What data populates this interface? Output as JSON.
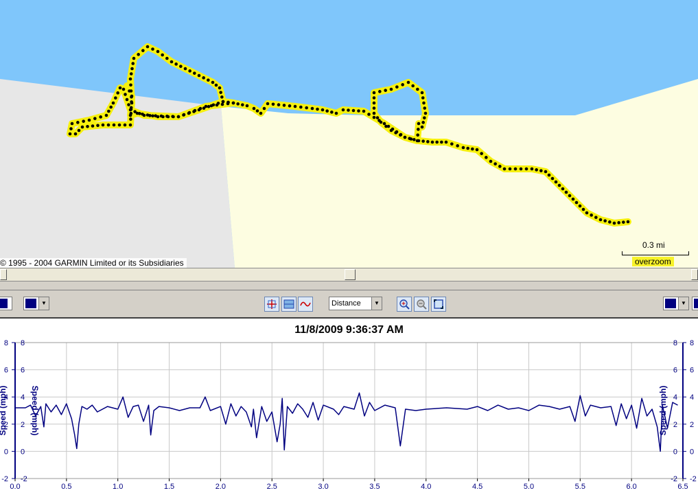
{
  "map": {
    "copyright": "© 1995 - 2004 GARMIN Limited or its Subsidiaries",
    "scale_label": "0.3 mi",
    "overzoom_label": "overzoom",
    "colors": {
      "water": "#7fc6fb",
      "land_gray": "#e7e7e7",
      "land_cream": "#fdfde1",
      "track": "#f6f00f",
      "trackpoint": "#000000"
    }
  },
  "toolbar": {
    "axis_combo_left": "Distance",
    "buttons": [
      "crosshair-icon",
      "graph-panes-icon",
      "profile-graph-icon",
      "zoom-in-icon",
      "zoom-out-icon",
      "zoom-fit-icon"
    ],
    "series_color": "#000080"
  },
  "chart_data": {
    "type": "line",
    "title": "11/8/2009 9:36:37 AM",
    "xlabel": "",
    "ylabel": "Speed (mph)",
    "xlim": [
      0.0,
      6.5
    ],
    "ylim": [
      -2,
      8
    ],
    "x_ticks": [
      "0.0",
      "0.5",
      "1.0",
      "1.5",
      "2.0",
      "2.5",
      "3.0",
      "3.5",
      "4.0",
      "4.5",
      "5.0",
      "5.5",
      "6.0",
      "6.5"
    ],
    "y_ticks": [
      "-2",
      "0",
      "2",
      "4",
      "6",
      "8"
    ],
    "grid": true,
    "series": [
      {
        "color": "#000080",
        "x": [
          0.0,
          0.1,
          0.15,
          0.2,
          0.25,
          0.28,
          0.3,
          0.35,
          0.4,
          0.45,
          0.5,
          0.55,
          0.58,
          0.6,
          0.62,
          0.65,
          0.7,
          0.75,
          0.8,
          0.9,
          1.0,
          1.05,
          1.1,
          1.15,
          1.2,
          1.25,
          1.3,
          1.32,
          1.35,
          1.4,
          1.5,
          1.6,
          1.7,
          1.8,
          1.85,
          1.9,
          2.0,
          2.05,
          2.1,
          2.15,
          2.2,
          2.25,
          2.3,
          2.32,
          2.35,
          2.4,
          2.45,
          2.5,
          2.55,
          2.58,
          2.6,
          2.62,
          2.65,
          2.7,
          2.75,
          2.8,
          2.85,
          2.9,
          2.95,
          3.0,
          3.1,
          3.15,
          3.2,
          3.3,
          3.35,
          3.4,
          3.45,
          3.5,
          3.6,
          3.7,
          3.75,
          3.8,
          3.9,
          4.0,
          4.2,
          4.4,
          4.5,
          4.6,
          4.7,
          4.8,
          4.9,
          5.0,
          5.1,
          5.2,
          5.3,
          5.4,
          5.45,
          5.5,
          5.55,
          5.6,
          5.7,
          5.8,
          5.85,
          5.9,
          5.95,
          6.0,
          6.05,
          6.1,
          6.15,
          6.2,
          6.25,
          6.28,
          6.3,
          6.35,
          6.4,
          6.45
        ],
        "y": [
          3.2,
          3.2,
          3.4,
          2.6,
          3.3,
          1.8,
          3.5,
          2.9,
          3.4,
          2.7,
          3.5,
          2.4,
          1.2,
          0.2,
          2.0,
          3.3,
          3.1,
          3.4,
          2.9,
          3.3,
          3.1,
          4.0,
          2.5,
          3.3,
          3.4,
          2.2,
          3.4,
          1.2,
          3.0,
          3.3,
          3.2,
          3.0,
          3.2,
          3.2,
          4.0,
          3.0,
          3.3,
          2.0,
          3.5,
          2.6,
          3.3,
          2.9,
          1.8,
          3.1,
          1.0,
          3.3,
          2.2,
          2.9,
          0.7,
          2.0,
          3.9,
          0.1,
          3.3,
          2.8,
          3.5,
          3.1,
          2.5,
          3.6,
          2.3,
          3.4,
          3.1,
          2.7,
          3.3,
          3.1,
          4.3,
          2.6,
          3.6,
          3.0,
          3.4,
          3.2,
          0.4,
          3.1,
          3.0,
          3.1,
          3.2,
          3.1,
          3.3,
          3.0,
          3.4,
          3.1,
          3.2,
          3.0,
          3.4,
          3.3,
          3.1,
          3.3,
          2.2,
          4.1,
          2.6,
          3.4,
          3.2,
          3.3,
          1.9,
          3.5,
          2.4,
          3.4,
          1.7,
          3.9,
          2.6,
          3.1,
          1.8,
          0.0,
          3.4,
          1.7,
          3.6,
          3.4
        ]
      }
    ]
  }
}
